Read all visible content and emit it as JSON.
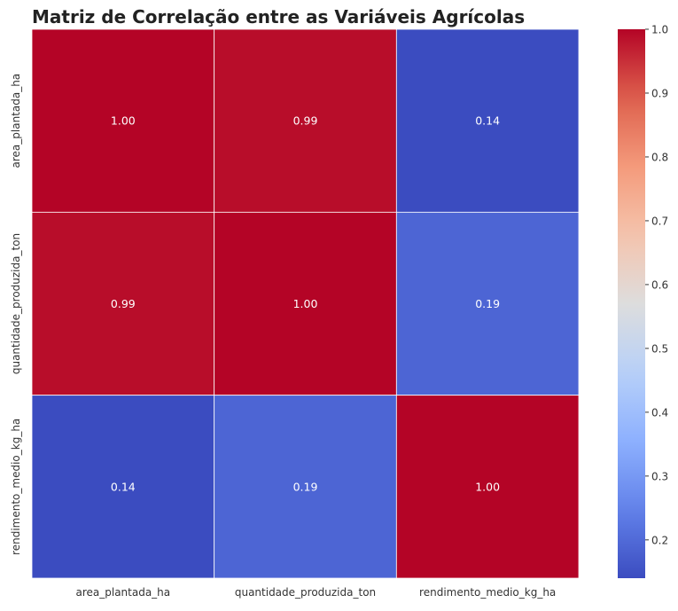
{
  "chart_data": {
    "type": "heatmap",
    "title": "Matriz de Correlação entre as Variáveis Agrícolas",
    "x_labels": [
      "area_plantada_ha",
      "quantidade_produzida_ton",
      "rendimento_medio_kg_ha"
    ],
    "y_labels": [
      "area_plantada_ha",
      "quantidade_produzida_ton",
      "rendimento_medio_kg_ha"
    ],
    "values": [
      [
        1.0,
        0.99,
        0.14
      ],
      [
        0.99,
        1.0,
        0.19
      ],
      [
        0.14,
        0.19,
        1.0
      ]
    ],
    "annotations": [
      [
        "1.00",
        "0.99",
        "0.14"
      ],
      [
        "0.99",
        "1.00",
        "0.19"
      ],
      [
        "0.14",
        "0.19",
        "1.00"
      ]
    ],
    "colormap": "coolwarm",
    "colorbar": {
      "min": 0.14,
      "max": 1.0,
      "ticks": [
        "0.2",
        "0.3",
        "0.4",
        "0.5",
        "0.6",
        "0.7",
        "0.8",
        "0.9",
        "1.0"
      ]
    },
    "grid": true,
    "legend": "right"
  }
}
